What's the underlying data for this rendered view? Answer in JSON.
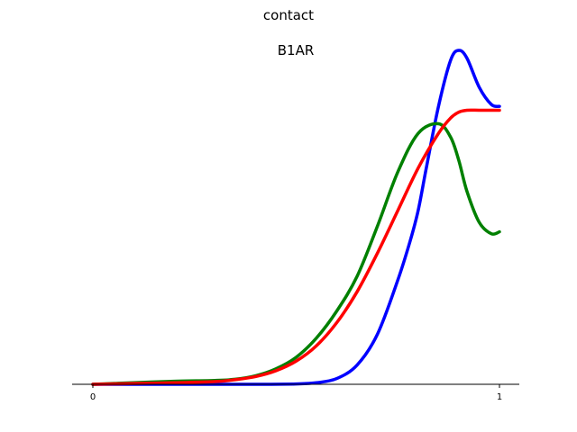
{
  "chart_data": {
    "type": "line",
    "title": "contact",
    "subtitle": "B1AR",
    "xlabel": "",
    "ylabel": "",
    "xlim": [
      0,
      1
    ],
    "ylim": [
      0,
      0.9
    ],
    "grid": false,
    "legend": "none",
    "x_ticks": [
      "0",
      "1"
    ],
    "y_ticks": [],
    "series": [
      {
        "color": "#0000ff",
        "x": [
          0.0,
          0.1,
          0.2,
          0.3,
          0.4,
          0.5,
          0.55,
          0.6,
          0.65,
          0.7,
          0.75,
          0.78,
          0.8,
          0.82,
          0.85,
          0.88,
          0.9,
          0.92,
          0.95,
          0.98,
          1.0
        ],
        "y": [
          0.0,
          0.0,
          0.0,
          0.0,
          0.0,
          0.001,
          0.004,
          0.015,
          0.05,
          0.13,
          0.27,
          0.37,
          0.45,
          0.56,
          0.72,
          0.84,
          0.865,
          0.845,
          0.77,
          0.725,
          0.72
        ]
      },
      {
        "color": "#008000",
        "x": [
          0.0,
          0.1,
          0.2,
          0.3,
          0.35,
          0.4,
          0.45,
          0.5,
          0.55,
          0.6,
          0.65,
          0.7,
          0.75,
          0.8,
          0.85,
          0.88,
          0.9,
          0.92,
          0.95,
          0.98,
          1.0
        ],
        "y": [
          0.0,
          0.004,
          0.008,
          0.01,
          0.013,
          0.022,
          0.04,
          0.07,
          0.12,
          0.19,
          0.28,
          0.41,
          0.55,
          0.65,
          0.675,
          0.64,
          0.58,
          0.5,
          0.42,
          0.39,
          0.395
        ]
      },
      {
        "color": "#ff0000",
        "x": [
          0.0,
          0.1,
          0.2,
          0.3,
          0.35,
          0.4,
          0.45,
          0.5,
          0.55,
          0.6,
          0.65,
          0.7,
          0.75,
          0.8,
          0.85,
          0.88,
          0.9,
          0.92,
          0.95,
          0.98,
          1.0
        ],
        "y": [
          0.0,
          0.002,
          0.004,
          0.007,
          0.012,
          0.02,
          0.035,
          0.06,
          0.1,
          0.16,
          0.24,
          0.34,
          0.45,
          0.56,
          0.65,
          0.69,
          0.705,
          0.71,
          0.71,
          0.71,
          0.71
        ]
      }
    ]
  }
}
